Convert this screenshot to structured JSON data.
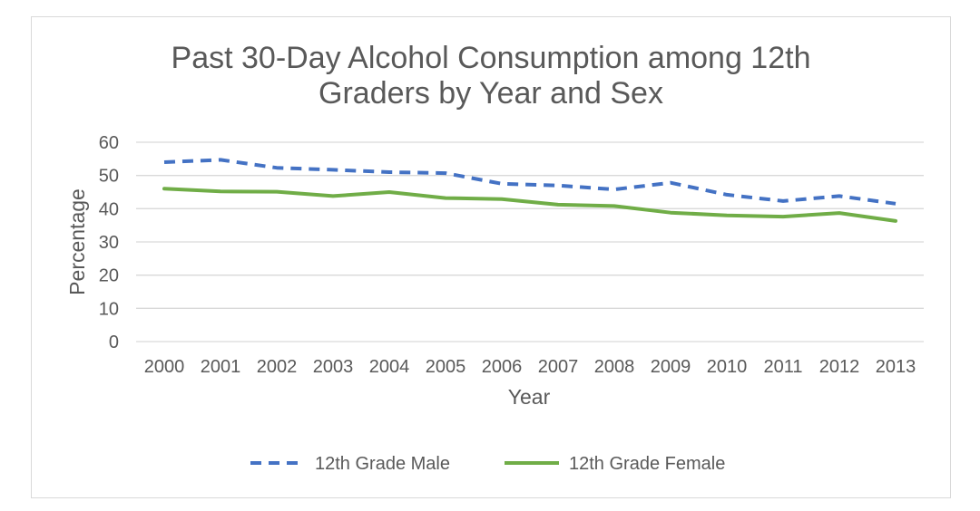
{
  "chart_data": {
    "type": "line",
    "title_lines": [
      "Past 30-Day Alcohol Consumption among 12th",
      "Graders by Year and Sex"
    ],
    "xlabel": "Year",
    "ylabel": "Percentage",
    "ylim": [
      0,
      60
    ],
    "yticks": [
      0,
      10,
      20,
      30,
      40,
      50,
      60
    ],
    "categories": [
      "2000",
      "2001",
      "2002",
      "2003",
      "2004",
      "2005",
      "2006",
      "2007",
      "2008",
      "2009",
      "2010",
      "2011",
      "2012",
      "2013"
    ],
    "grid": true,
    "legend_position": "bottom",
    "series": [
      {
        "name": "12th Grade Male",
        "color": "#4472c4",
        "style": "dashed",
        "values": [
          54.0,
          54.7,
          52.3,
          51.7,
          51.0,
          50.7,
          47.5,
          47.0,
          45.8,
          47.8,
          44.2,
          42.3,
          43.8,
          41.5
        ]
      },
      {
        "name": "12th Grade Female",
        "color": "#70ad47",
        "style": "solid",
        "values": [
          46.0,
          45.2,
          45.1,
          43.8,
          45.0,
          43.2,
          42.9,
          41.2,
          40.8,
          38.8,
          38.0,
          37.6,
          38.7,
          36.3
        ]
      }
    ]
  }
}
